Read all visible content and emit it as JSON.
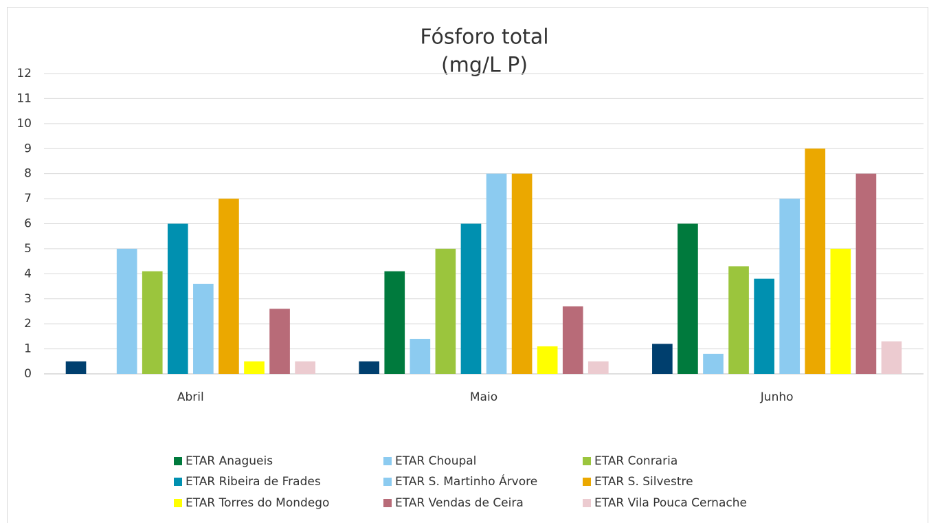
{
  "chart_data": {
    "type": "bar",
    "title": "Fósforo total",
    "subtitle": "(mg/L P)",
    "categories": [
      "Abril",
      "Maio",
      "Junho"
    ],
    "series": [
      {
        "color": "#003f6e",
        "values": [
          0.5,
          0.5,
          1.2
        ]
      },
      {
        "name": "ETAR Anagueis",
        "color": "#007a3d",
        "values": [
          null,
          4.1,
          6
        ]
      },
      {
        "name": "ETAR Choupal",
        "color": "#8ccbf0",
        "values": [
          5,
          1.4,
          0.8
        ]
      },
      {
        "name": "ETAR Conraria",
        "color": "#9bc53d",
        "values": [
          4.1,
          5,
          4.3
        ]
      },
      {
        "name": "ETAR Ribeira de Frades",
        "color": "#0090b0",
        "values": [
          6,
          6,
          3.8
        ]
      },
      {
        "name": "ETAR S. Martinho Árvore",
        "color": "#8ccbf0",
        "values": [
          3.6,
          8,
          7
        ]
      },
      {
        "name": "ETAR S. Silvestre",
        "color": "#eba800",
        "values": [
          7,
          8,
          9
        ]
      },
      {
        "name": "ETAR Torres do Mondego",
        "color": "#ffff00",
        "values": [
          0.5,
          1.1,
          5
        ]
      },
      {
        "name": "ETAR Vendas de Ceira",
        "color": "#b86b78",
        "values": [
          2.6,
          2.7,
          8
        ]
      },
      {
        "name": "ETAR Vila Pouca Cernache",
        "color": "#eccbd0",
        "values": [
          0.5,
          0.5,
          1.3
        ]
      }
    ],
    "ylim": [
      0,
      12
    ],
    "yticks": [
      0,
      1,
      2,
      3,
      4,
      5,
      6,
      7,
      8,
      9,
      10,
      11,
      12
    ],
    "grid": true,
    "legend": "bottom"
  }
}
